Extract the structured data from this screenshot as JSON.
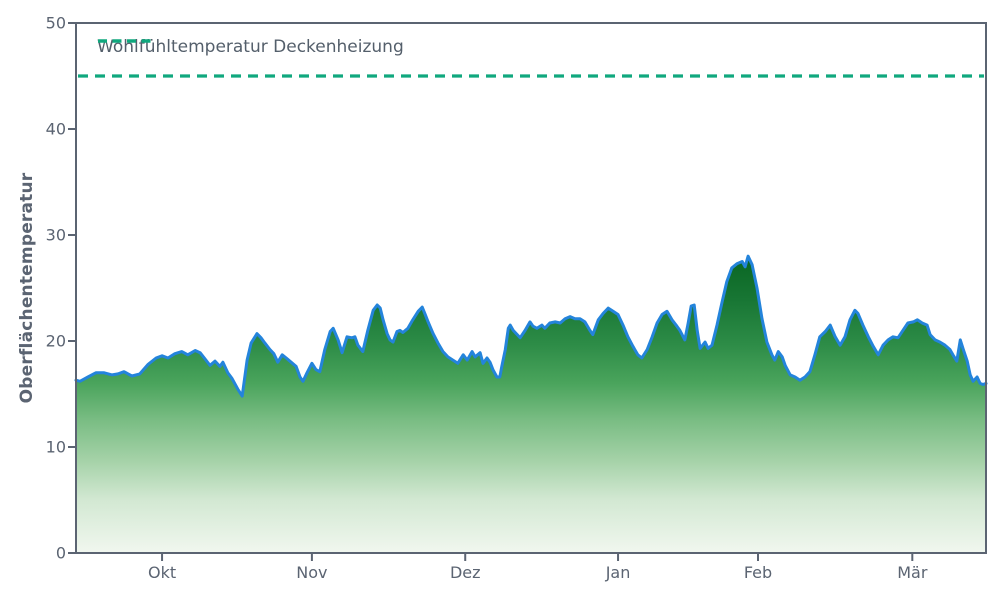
{
  "chart_data": {
    "type": "area",
    "title": "",
    "xlabel": "",
    "ylabel": "Oberflächentemperatur",
    "ylim": [
      0,
      50
    ],
    "y_ticks": [
      0,
      10,
      20,
      30,
      40,
      50
    ],
    "x_range_days": [
      0,
      184
    ],
    "x_ticks": [
      {
        "label": "Okt",
        "day": 17.4
      },
      {
        "label": "Nov",
        "day": 47.7
      },
      {
        "label": "Dez",
        "day": 78.7
      },
      {
        "label": "Jan",
        "day": 109.6
      },
      {
        "label": "Feb",
        "day": 137.9
      },
      {
        "label": "Mär",
        "day": 169.1
      }
    ],
    "grid": false,
    "legend": {
      "position": "upper left",
      "entries": [
        {
          "label": "Wohlfühltemperatur Deckenheizung",
          "style": "dashed",
          "color": "#10a87e"
        }
      ]
    },
    "reference_line": {
      "label": "Wohlfühltemperatur Deckenheizung",
      "value": 45,
      "style": "dashed"
    },
    "series": [
      {
        "name": "Oberflächentemperatur",
        "points": [
          [
            0,
            16.3
          ],
          [
            0.8,
            16.2
          ],
          [
            2.4,
            16.6
          ],
          [
            4,
            17
          ],
          [
            5.7,
            17
          ],
          [
            7.3,
            16.8
          ],
          [
            8.5,
            16.9
          ],
          [
            9.7,
            17.1
          ],
          [
            11.3,
            16.7
          ],
          [
            12.9,
            16.9
          ],
          [
            14.6,
            17.8
          ],
          [
            16.2,
            18.4
          ],
          [
            17.4,
            18.6
          ],
          [
            18.6,
            18.4
          ],
          [
            20,
            18.8
          ],
          [
            21.4,
            19
          ],
          [
            22.6,
            18.7
          ],
          [
            24.1,
            19.1
          ],
          [
            25.1,
            18.9
          ],
          [
            26.1,
            18.3
          ],
          [
            27.1,
            17.7
          ],
          [
            28.1,
            18.1
          ],
          [
            29.1,
            17.6
          ],
          [
            29.7,
            18
          ],
          [
            30.7,
            17
          ],
          [
            31.5,
            16.5
          ],
          [
            32.8,
            15.4
          ],
          [
            33.6,
            14.8
          ],
          [
            34.6,
            18.2
          ],
          [
            35.4,
            19.8
          ],
          [
            36.6,
            20.7
          ],
          [
            37.4,
            20.3
          ],
          [
            38.2,
            19.8
          ],
          [
            39.2,
            19.2
          ],
          [
            40,
            18.8
          ],
          [
            40.8,
            18
          ],
          [
            41.7,
            18.7
          ],
          [
            42.5,
            18.4
          ],
          [
            43.5,
            18
          ],
          [
            44.5,
            17.6
          ],
          [
            45.3,
            16.6
          ],
          [
            45.9,
            16.2
          ],
          [
            46.7,
            17
          ],
          [
            47.7,
            17.9
          ],
          [
            48.5,
            17.3
          ],
          [
            49.3,
            17.1
          ],
          [
            50.3,
            19.2
          ],
          [
            51.4,
            20.9
          ],
          [
            52,
            21.2
          ],
          [
            53,
            20.1
          ],
          [
            53.8,
            18.9
          ],
          [
            54.8,
            20.4
          ],
          [
            55.8,
            20.3
          ],
          [
            56.4,
            20.4
          ],
          [
            57,
            19.6
          ],
          [
            58,
            19
          ],
          [
            59,
            21
          ],
          [
            60.1,
            22.9
          ],
          [
            60.9,
            23.4
          ],
          [
            61.5,
            23.1
          ],
          [
            62.1,
            22
          ],
          [
            62.9,
            20.7
          ],
          [
            63.5,
            20.1
          ],
          [
            64.1,
            19.9
          ],
          [
            64.9,
            20.9
          ],
          [
            65.5,
            21
          ],
          [
            66.1,
            20.8
          ],
          [
            67.1,
            21.2
          ],
          [
            68.1,
            22
          ],
          [
            69.2,
            22.8
          ],
          [
            70,
            23.2
          ],
          [
            70.6,
            22.5
          ],
          [
            71.2,
            21.8
          ],
          [
            72.2,
            20.7
          ],
          [
            73.2,
            19.8
          ],
          [
            74.2,
            19
          ],
          [
            75.2,
            18.5
          ],
          [
            76.2,
            18.2
          ],
          [
            77.2,
            17.9
          ],
          [
            78.3,
            18.7
          ],
          [
            79.1,
            18.2
          ],
          [
            80.1,
            19
          ],
          [
            80.7,
            18.5
          ],
          [
            81.7,
            18.9
          ],
          [
            82.3,
            17.9
          ],
          [
            83.1,
            18.4
          ],
          [
            83.7,
            18
          ],
          [
            84.3,
            17.3
          ],
          [
            85.1,
            16.6
          ],
          [
            85.7,
            16.6
          ],
          [
            86.1,
            17.6
          ],
          [
            86.8,
            19.2
          ],
          [
            87.4,
            21.2
          ],
          [
            87.8,
            21.5
          ],
          [
            88.4,
            21
          ],
          [
            89.2,
            20.6
          ],
          [
            89.8,
            20.3
          ],
          [
            90.8,
            21
          ],
          [
            91.8,
            21.8
          ],
          [
            92.4,
            21.4
          ],
          [
            93.2,
            21.2
          ],
          [
            94.2,
            21.5
          ],
          [
            94.8,
            21.2
          ],
          [
            95.8,
            21.7
          ],
          [
            96.9,
            21.8
          ],
          [
            97.9,
            21.7
          ],
          [
            98.9,
            22.1
          ],
          [
            99.9,
            22.3
          ],
          [
            100.9,
            22.1
          ],
          [
            101.9,
            22.1
          ],
          [
            102.9,
            21.8
          ],
          [
            103.9,
            21
          ],
          [
            104.5,
            20.6
          ],
          [
            105.6,
            22
          ],
          [
            106.6,
            22.6
          ],
          [
            107.6,
            23.1
          ],
          [
            108.6,
            22.8
          ],
          [
            109.6,
            22.5
          ],
          [
            110.6,
            21.5
          ],
          [
            111.6,
            20.4
          ],
          [
            112.6,
            19.5
          ],
          [
            113.6,
            18.7
          ],
          [
            114.4,
            18.4
          ],
          [
            115.5,
            19.2
          ],
          [
            116.5,
            20.4
          ],
          [
            117.5,
            21.7
          ],
          [
            118.5,
            22.5
          ],
          [
            119.5,
            22.8
          ],
          [
            120.5,
            22
          ],
          [
            121.5,
            21.4
          ],
          [
            122.1,
            21
          ],
          [
            123.1,
            20.1
          ],
          [
            123.7,
            21.5
          ],
          [
            124.4,
            23.3
          ],
          [
            125,
            23.4
          ],
          [
            125.6,
            21
          ],
          [
            126.2,
            19.3
          ],
          [
            127.2,
            19.9
          ],
          [
            127.8,
            19.3
          ],
          [
            128.6,
            19.6
          ],
          [
            129.6,
            21.5
          ],
          [
            130.6,
            23.6
          ],
          [
            131.6,
            25.6
          ],
          [
            132.6,
            26.9
          ],
          [
            133.7,
            27.3
          ],
          [
            134.7,
            27.5
          ],
          [
            135.3,
            27
          ],
          [
            135.9,
            28
          ],
          [
            136.7,
            27.2
          ],
          [
            137.7,
            25
          ],
          [
            138.7,
            22.1
          ],
          [
            139.7,
            19.9
          ],
          [
            140.7,
            18.7
          ],
          [
            141.3,
            18.2
          ],
          [
            142,
            19
          ],
          [
            142.8,
            18.5
          ],
          [
            143.4,
            17.7
          ],
          [
            144.4,
            16.8
          ],
          [
            145.4,
            16.6
          ],
          [
            146.4,
            16.3
          ],
          [
            147.4,
            16.6
          ],
          [
            148.4,
            17.1
          ],
          [
            149.4,
            18.7
          ],
          [
            150.4,
            20.4
          ],
          [
            151.5,
            20.9
          ],
          [
            152.5,
            21.5
          ],
          [
            153.5,
            20.4
          ],
          [
            154.5,
            19.6
          ],
          [
            155.5,
            20.4
          ],
          [
            156.5,
            22
          ],
          [
            157.5,
            22.9
          ],
          [
            158.1,
            22.6
          ],
          [
            159.1,
            21.5
          ],
          [
            160.2,
            20.4
          ],
          [
            161.2,
            19.5
          ],
          [
            162.2,
            18.7
          ],
          [
            163.2,
            19.6
          ],
          [
            164.2,
            20.1
          ],
          [
            165.2,
            20.4
          ],
          [
            166.2,
            20.3
          ],
          [
            167.2,
            21
          ],
          [
            168.2,
            21.7
          ],
          [
            169.3,
            21.8
          ],
          [
            170.1,
            22
          ],
          [
            171.1,
            21.7
          ],
          [
            172.1,
            21.5
          ],
          [
            172.7,
            20.6
          ],
          [
            173.7,
            20.1
          ],
          [
            174.7,
            19.9
          ],
          [
            175.7,
            19.6
          ],
          [
            176.7,
            19.2
          ],
          [
            177.3,
            18.7
          ],
          [
            178.1,
            18.1
          ],
          [
            178.8,
            20.1
          ],
          [
            179.4,
            19.2
          ],
          [
            180.2,
            18.1
          ],
          [
            180.8,
            16.8
          ],
          [
            181.4,
            16.2
          ],
          [
            182.2,
            16.6
          ],
          [
            182.8,
            16
          ],
          [
            183.4,
            15.9
          ],
          [
            184,
            16
          ]
        ]
      }
    ]
  },
  "colors": {
    "line": "#2484db",
    "reference": "#10a87e",
    "axis": "#5b6472",
    "background": "#ffffff",
    "gradient_stops": [
      [
        "0%",
        "#096522"
      ],
      [
        "15%",
        "#187634"
      ],
      [
        "30%",
        "#2d8c47"
      ],
      [
        "43%",
        "#4aa45c"
      ],
      [
        "55%",
        "#78bc82"
      ],
      [
        "69%",
        "#a5d2a8"
      ],
      [
        "82%",
        "#d2e8d2"
      ],
      [
        "100%",
        "#f1f7ef"
      ]
    ]
  }
}
